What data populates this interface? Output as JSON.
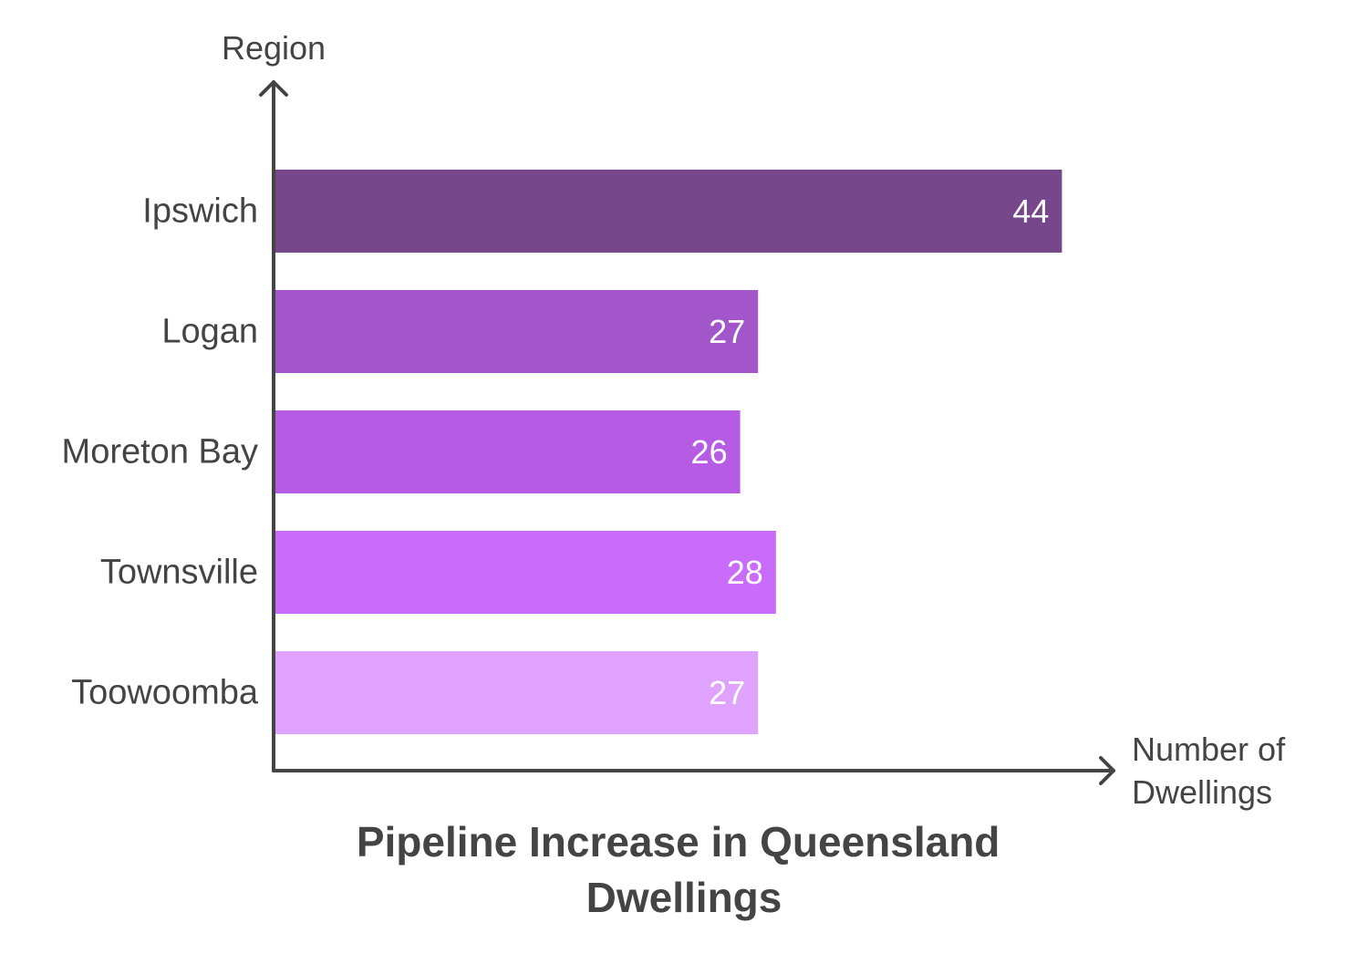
{
  "chart_data": {
    "type": "bar",
    "orientation": "horizontal",
    "title_lines": [
      "Pipeline Increase in Queensland",
      "Dwellings"
    ],
    "ylabel": "Region",
    "xlabel_lines": [
      "Number of",
      "Dwellings"
    ],
    "categories": [
      "Ipswich",
      "Logan",
      "Moreton Bay",
      "Townsville",
      "Toowoomba"
    ],
    "values": [
      44,
      27,
      26,
      28,
      27
    ],
    "colors": [
      "#77478c",
      "#a356c9",
      "#b65ce4",
      "#c96bfb",
      "#e0a3fd"
    ],
    "xlim": [
      0,
      56
    ],
    "grid": false,
    "legend": "none"
  }
}
